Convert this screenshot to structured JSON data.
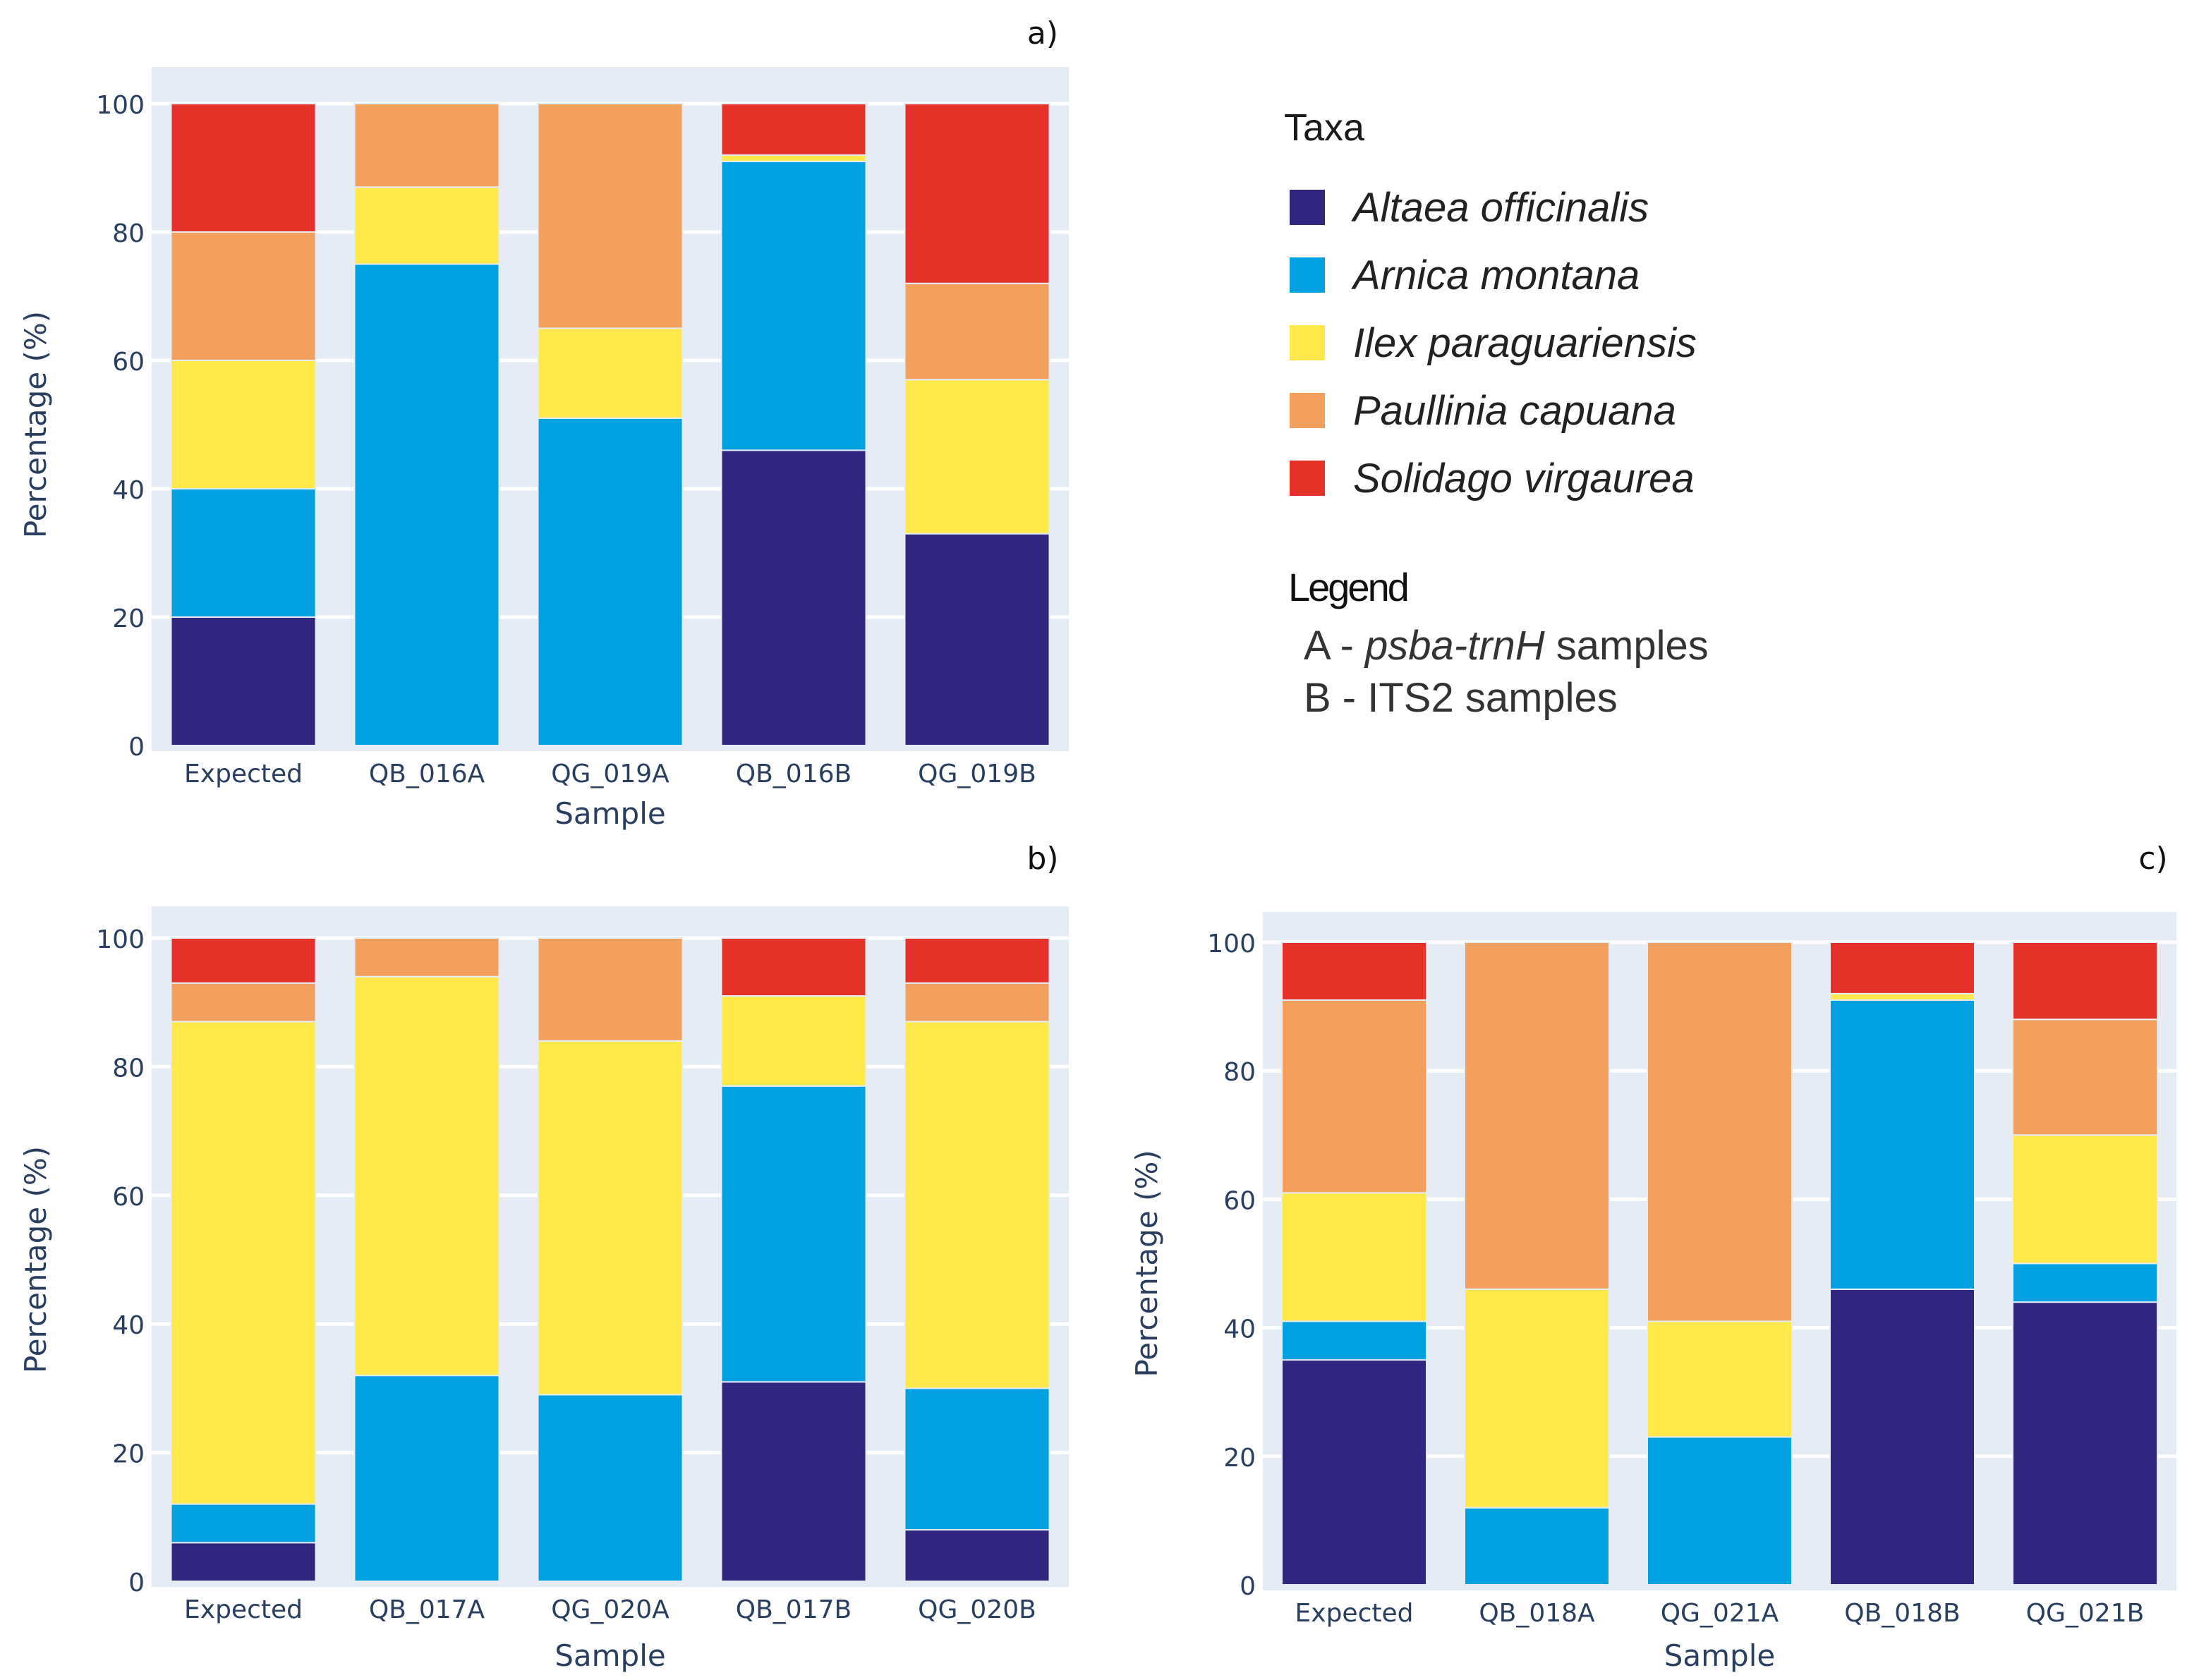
{
  "taxa_legend": {
    "title": "Taxa",
    "items": [
      {
        "label": "Altaea officinalis",
        "color": "#31267f"
      },
      {
        "label": "Arnica montana",
        "color": "#00a0e1"
      },
      {
        "label": "Ilex paraguariensis",
        "color": "#ffe94a"
      },
      {
        "label": "Paullinia capuana",
        "color": "#f39f5e"
      },
      {
        "label": "Solidago virgaurea",
        "color": "#e53229"
      }
    ]
  },
  "sample_legend": {
    "title": "Legend",
    "lines": [
      {
        "prefix": "A - ",
        "italic": "psba-trnH",
        "suffix": " samples"
      },
      {
        "prefix": "B - ",
        "italic": "",
        "suffix": "ITS2 samples"
      }
    ]
  },
  "chart_data": [
    {
      "panel": "a)",
      "type": "bar",
      "stacked": true,
      "xlabel": "Sample",
      "ylabel": "Percentage (%)",
      "ylim": [
        0,
        100
      ],
      "yticks": [
        0,
        20,
        40,
        60,
        80,
        100
      ],
      "grid": true,
      "categories": [
        "Expected",
        "QB_016A",
        "QG_019A",
        "QB_016B",
        "QG_019B"
      ],
      "series": [
        {
          "name": "Altaea officinalis",
          "values": [
            20,
            0,
            0,
            46,
            33
          ]
        },
        {
          "name": "Arnica montana",
          "values": [
            20,
            75,
            51,
            45,
            0
          ]
        },
        {
          "name": "Ilex paraguariensis",
          "values": [
            20,
            12,
            14,
            1,
            24
          ]
        },
        {
          "name": "Paullinia capuana",
          "values": [
            20,
            13,
            35,
            0,
            15
          ]
        },
        {
          "name": "Solidago virgaurea",
          "values": [
            20,
            0,
            0,
            8,
            28
          ]
        }
      ]
    },
    {
      "panel": "b)",
      "type": "bar",
      "stacked": true,
      "xlabel": "Sample",
      "ylabel": "Percentage (%)",
      "ylim": [
        0,
        100
      ],
      "yticks": [
        0,
        20,
        40,
        60,
        80,
        100
      ],
      "grid": true,
      "categories": [
        "Expected",
        "QB_017A",
        "QG_020A",
        "QB_017B",
        "QG_020B"
      ],
      "series": [
        {
          "name": "Altaea officinalis",
          "values": [
            6,
            0,
            0,
            31,
            8
          ]
        },
        {
          "name": "Arnica montana",
          "values": [
            6,
            32,
            29,
            46,
            22
          ]
        },
        {
          "name": "Ilex paraguariensis",
          "values": [
            75,
            62,
            55,
            14,
            57
          ]
        },
        {
          "name": "Paullinia capuana",
          "values": [
            6,
            6,
            16,
            0,
            6
          ]
        },
        {
          "name": "Solidago virgaurea",
          "values": [
            7,
            0,
            0,
            9,
            7
          ]
        }
      ]
    },
    {
      "panel": "c)",
      "type": "bar",
      "stacked": true,
      "xlabel": "Sample",
      "ylabel": "Percentage (%)",
      "ylim": [
        0,
        100
      ],
      "yticks": [
        0,
        20,
        40,
        60,
        80,
        100
      ],
      "grid": true,
      "categories": [
        "Expected",
        "QB_018A",
        "QG_021A",
        "QB_018B",
        "QG_021B"
      ],
      "series": [
        {
          "name": "Altaea officinalis",
          "values": [
            35,
            0,
            0,
            46,
            44
          ]
        },
        {
          "name": "Arnica montana",
          "values": [
            6,
            12,
            23,
            45,
            6
          ]
        },
        {
          "name": "Ilex paraguariensis",
          "values": [
            20,
            34,
            18,
            1,
            20
          ]
        },
        {
          "name": "Paullinia capuana",
          "values": [
            30,
            54,
            59,
            0,
            18
          ]
        },
        {
          "name": "Solidago virgaurea",
          "values": [
            9,
            0,
            0,
            8,
            12
          ]
        }
      ]
    }
  ]
}
